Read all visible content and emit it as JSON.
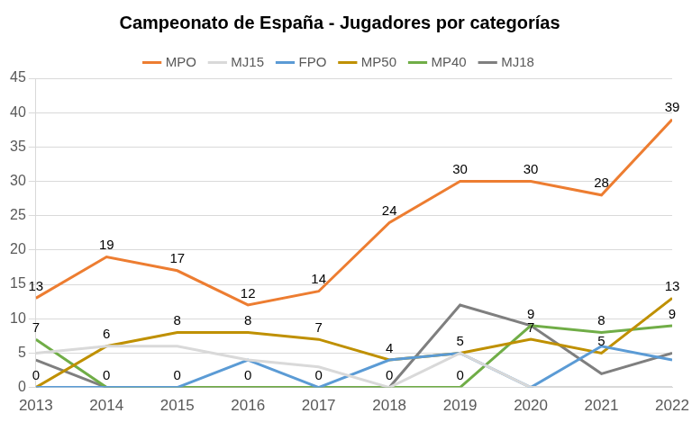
{
  "chart_data": {
    "type": "line",
    "title": "Campeonato de España - Jugadores por categorías",
    "categories": [
      "2013",
      "2014",
      "2015",
      "2016",
      "2017",
      "2018",
      "2019",
      "2020",
      "2021",
      "2022"
    ],
    "series": [
      {
        "name": "MPO",
        "color": "#ED7D31",
        "values": [
          13,
          19,
          17,
          12,
          14,
          24,
          30,
          30,
          28,
          39
        ],
        "data_labels": true
      },
      {
        "name": "MJ15",
        "color": "#D9D9D9",
        "values": [
          5,
          6,
          6,
          4,
          3,
          0,
          5,
          0,
          0,
          0
        ],
        "data_labels": false
      },
      {
        "name": "FPO",
        "color": "#5B9BD5",
        "values": [
          0,
          0,
          0,
          4,
          0,
          4,
          5,
          0,
          6,
          4
        ],
        "data_labels": false
      },
      {
        "name": "MP50",
        "color": "#BF9000",
        "values": [
          0,
          6,
          8,
          8,
          7,
          4,
          5,
          7,
          5,
          13
        ],
        "data_labels": true
      },
      {
        "name": "MP40",
        "color": "#70AD47",
        "values": [
          7,
          0,
          0,
          0,
          0,
          0,
          0,
          9,
          8,
          9
        ],
        "data_labels": true
      },
      {
        "name": "MJ18",
        "color": "#7F7F7F",
        "values": [
          4,
          0,
          0,
          0,
          0,
          0,
          12,
          9,
          2,
          5
        ],
        "data_labels": false
      }
    ],
    "ylim": [
      0,
      45
    ],
    "yticks": [
      0,
      5,
      10,
      15,
      20,
      25,
      30,
      35,
      40,
      45
    ],
    "grid": true,
    "legend": "top"
  }
}
